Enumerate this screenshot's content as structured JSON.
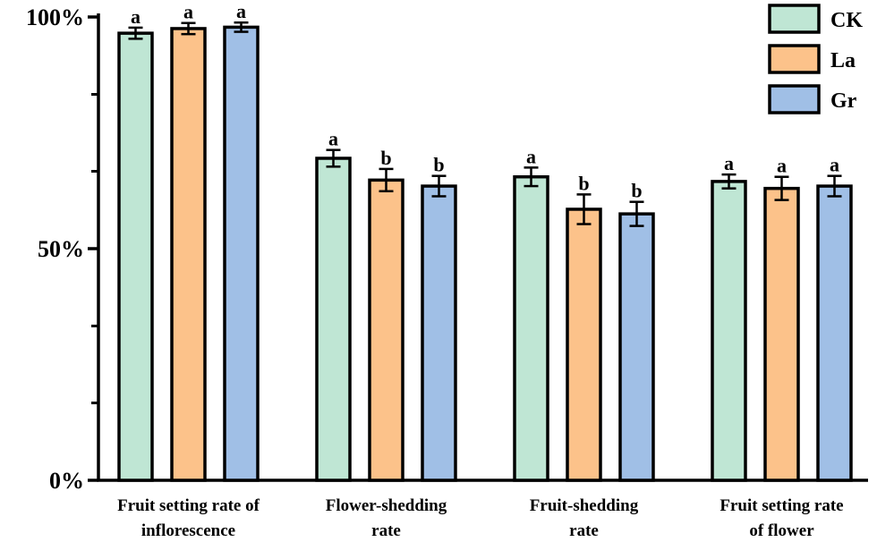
{
  "chart_data": {
    "type": "bar",
    "title": "",
    "xlabel": "",
    "ylabel": "",
    "ylim": [
      0,
      100
    ],
    "y_ticks": [
      0,
      50,
      100
    ],
    "y_tick_labels": [
      "0%",
      "50%",
      "100%"
    ],
    "y_minor_ticks": [
      16.7,
      33.3,
      66.7,
      83.3
    ],
    "categories": [
      [
        "Fruit setting rate of",
        "inflorescence"
      ],
      [
        "Flower-shedding",
        "rate"
      ],
      [
        "Fruit-shedding",
        "rate"
      ],
      [
        "Fruit setting rate",
        "of flower"
      ]
    ],
    "series": [
      {
        "name": "CK",
        "color": "#bfe6d4",
        "values": [
          96.5,
          69.5,
          65.5,
          64.5
        ],
        "errors": [
          1.2,
          1.8,
          2.0,
          1.5
        ],
        "letters": [
          "a",
          "a",
          "a",
          "a"
        ]
      },
      {
        "name": "La",
        "color": "#fcc28a",
        "values": [
          97.5,
          64.8,
          58.5,
          63.0
        ],
        "errors": [
          1.2,
          2.4,
          3.2,
          2.5
        ],
        "letters": [
          "a",
          "b",
          "b",
          "a"
        ]
      },
      {
        "name": "Gr",
        "color": "#a0bfe6",
        "values": [
          97.8,
          63.5,
          57.5,
          63.5
        ],
        "errors": [
          1.0,
          2.2,
          2.6,
          2.2
        ],
        "letters": [
          "a",
          "b",
          "b",
          "a"
        ]
      }
    ],
    "legend": {
      "position": "top-right",
      "entries": [
        "CK",
        "La",
        "Gr"
      ]
    },
    "grid": false
  }
}
